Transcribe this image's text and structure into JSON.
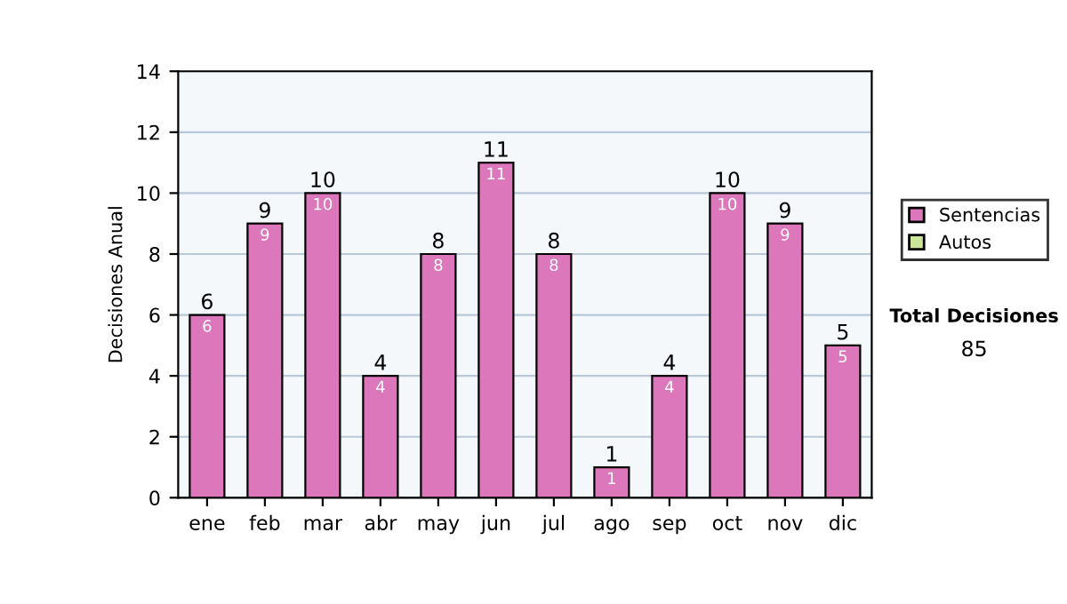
{
  "chart_data": {
    "type": "bar",
    "stacked": true,
    "ylabel": "Decisiones Anual",
    "categories": [
      "ene",
      "feb",
      "mar",
      "abr",
      "may",
      "jun",
      "jul",
      "ago",
      "sep",
      "oct",
      "nov",
      "dic"
    ],
    "series": [
      {
        "name": "Sentencias",
        "color": "#dd77bb",
        "values": [
          6,
          9,
          10,
          4,
          8,
          11,
          8,
          1,
          4,
          10,
          9,
          5
        ],
        "value_labels": [
          "6",
          "9",
          "10",
          "4",
          "8",
          "11",
          "8",
          "1",
          "4",
          "10",
          "9",
          "5"
        ]
      },
      {
        "name": "Autos",
        "color": "#cce699",
        "values": [
          null,
          null,
          null,
          null,
          null,
          null,
          null,
          null,
          null,
          null,
          null,
          null
        ]
      }
    ],
    "totals": [
      "6",
      "9",
      "10",
      "4",
      "8",
      "11",
      "8",
      "1",
      "4",
      "10",
      "9",
      "5"
    ],
    "ylim": [
      0,
      14
    ],
    "yticks": [
      0,
      2,
      4,
      6,
      8,
      10,
      12,
      14
    ],
    "grid": "y",
    "legend": "right",
    "annotations": [
      "Total Decisiones",
      "85"
    ]
  }
}
